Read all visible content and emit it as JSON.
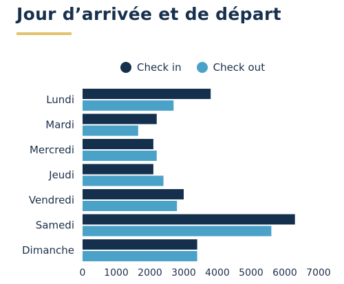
{
  "title": "Jour d’arrivée et de départ",
  "colors": {
    "check_in": "#15304d",
    "check_out": "#4aa2c9",
    "underline": "#e2c36b"
  },
  "chart_data": {
    "type": "bar",
    "orientation": "horizontal",
    "title": "Jour d’arrivée et de départ",
    "xlabel": "",
    "ylabel": "",
    "categories": [
      "Lundi",
      "Mardi",
      "Mercredi",
      "Jeudi",
      "Vendredi",
      "Samedi",
      "Dimanche"
    ],
    "series": [
      {
        "name": "Check in",
        "color": "#15304d",
        "values": [
          3800,
          2200,
          2100,
          2100,
          3000,
          6300,
          3400
        ]
      },
      {
        "name": "Check out",
        "color": "#4aa2c9",
        "values": [
          2700,
          1650,
          2200,
          2400,
          2800,
          5600,
          3400
        ]
      }
    ],
    "xlim": [
      0,
      7000
    ],
    "xticks": [
      0,
      1000,
      2000,
      3000,
      4000,
      5000,
      6000,
      7000
    ],
    "grid": false,
    "legend_position": "top"
  }
}
